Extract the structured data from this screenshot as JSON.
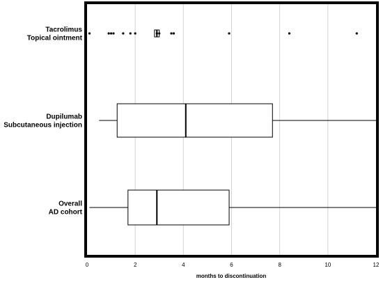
{
  "chart_data": {
    "type": "boxplot",
    "orientation": "horizontal",
    "xlabel": "months to discontinuation",
    "xlim": [
      0,
      12
    ],
    "xticks": [
      0,
      2,
      4,
      6,
      8,
      10,
      12
    ],
    "grid": true,
    "categories": [
      {
        "lines": [
          "Tacrolimus",
          "Topical ointment"
        ],
        "whisker_low": 2.8,
        "q1": 2.8,
        "median": 2.9,
        "q3": 3.0,
        "whisker_high": 3.0,
        "outliers": [
          0.1,
          0.9,
          1.0,
          1.1,
          1.5,
          1.8,
          2.0,
          2.9,
          3.0,
          3.5,
          3.6,
          5.9,
          8.4,
          11.2
        ]
      },
      {
        "lines": [
          "Dupilumab",
          "Subcutaneous injection"
        ],
        "whisker_low": 0.5,
        "q1": 1.25,
        "median": 4.1,
        "q3": 7.7,
        "whisker_high": 12,
        "outliers": []
      },
      {
        "lines": [
          "Overall",
          "AD cohort"
        ],
        "whisker_low": 0.1,
        "q1": 1.7,
        "median": 2.9,
        "q3": 5.9,
        "whisker_high": 12,
        "outliers": []
      }
    ]
  }
}
